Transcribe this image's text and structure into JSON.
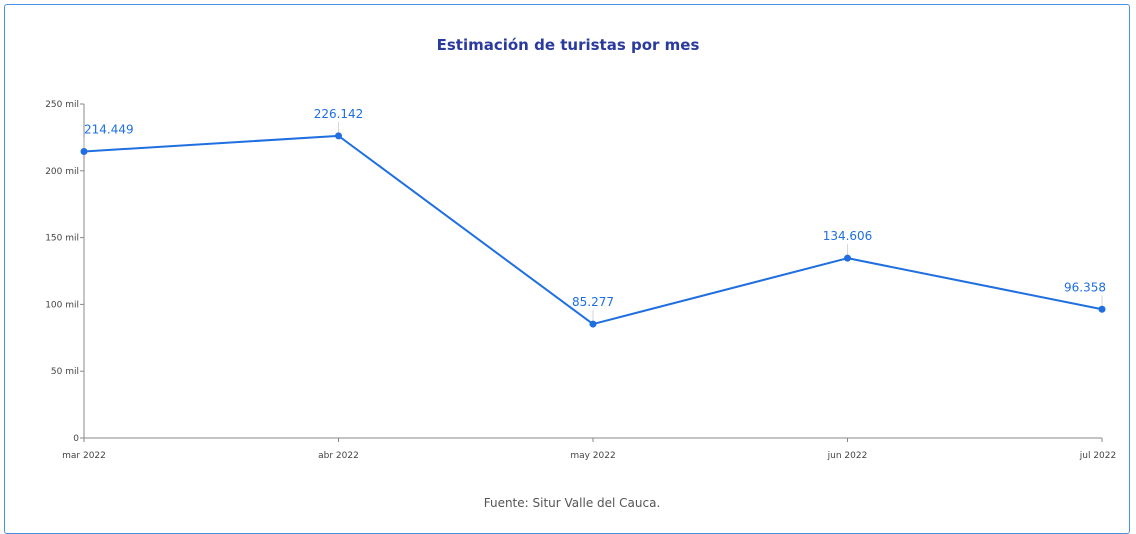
{
  "colors": {
    "series": "#1f6fe0",
    "title": "#2b3a9e",
    "axis": "#888888",
    "frame": "#4a90e2"
  },
  "chart_data": {
    "type": "line",
    "title": "Estimación de turistas por mes",
    "xlabel": "",
    "ylabel": "",
    "categories": [
      "mar 2022",
      "abr 2022",
      "may 2022",
      "jun 2022",
      "jul 2022"
    ],
    "values": [
      214449,
      226142,
      85277,
      134606,
      96358
    ],
    "value_labels": [
      "214.449",
      "226.142",
      "85.277",
      "134.606",
      "96.358"
    ],
    "ylim": [
      0,
      250000
    ],
    "yticks": [
      0,
      50000,
      100000,
      150000,
      200000,
      250000
    ],
    "ytick_labels": [
      "0",
      "50 mil",
      "100 mil",
      "150 mil",
      "200 mil",
      "250 mil"
    ],
    "grid": false,
    "legend": "none"
  },
  "source": "Fuente: Situr Valle del Cauca."
}
